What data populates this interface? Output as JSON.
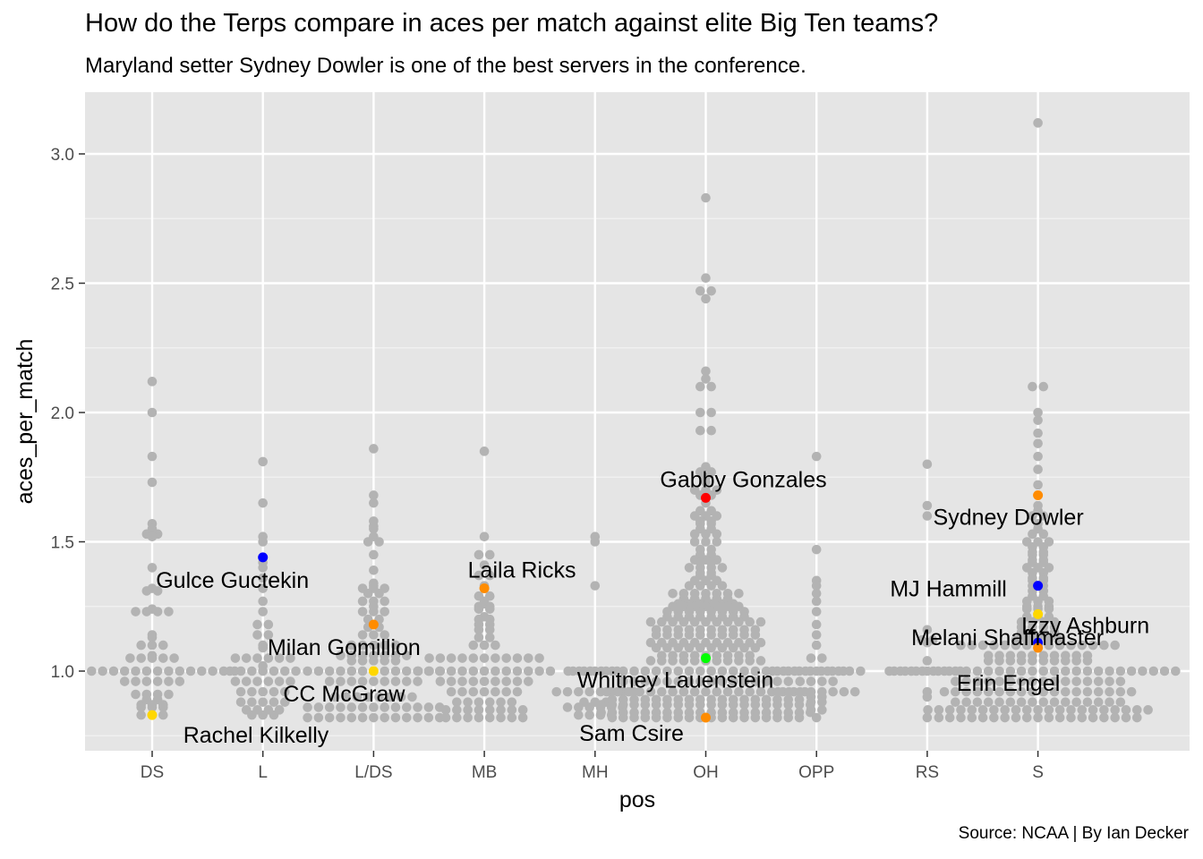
{
  "title": "How do the Terps compare in aces per match against elite Big Ten teams?",
  "subtitle": "Maryland setter Sydney Dowler is one of the best servers in the conference.",
  "caption": "Source: NCAA | By Ian Decker",
  "chart_data": {
    "type": "scatter",
    "xlabel": "pos",
    "ylabel": "aces_per_match",
    "categories": [
      "DS",
      "L",
      "L/DS",
      "MB",
      "MH",
      "OH",
      "OPP",
      "RS",
      "S"
    ],
    "ylim": [
      0.7,
      3.22
    ],
    "yticks": [
      1.0,
      1.5,
      2.0,
      2.5,
      3.0
    ],
    "ytick_labels": [
      "1.0",
      "1.5",
      "2.0",
      "2.5",
      "3.0"
    ],
    "grid": true,
    "background_color": "#e5e5e5",
    "point_color": "#b3b3b3",
    "highlighted": [
      {
        "label": "Gulce Guctekin",
        "pos": "L",
        "aces_per_match": 1.44,
        "color": "#0000ff"
      },
      {
        "label": "Rachel Kilkelly",
        "pos": "DS",
        "aces_per_match": 0.83,
        "color": "#ffd700"
      },
      {
        "label": "Milan Gomillion",
        "pos": "L/DS",
        "aces_per_match": 1.18,
        "color": "#ff8c00"
      },
      {
        "label": "CC McGraw",
        "pos": "L/DS",
        "aces_per_match": 1.0,
        "color": "#ffd700"
      },
      {
        "label": "Laila Ricks",
        "pos": "MB",
        "aces_per_match": 1.32,
        "color": "#ff8c00"
      },
      {
        "label": "Gabby Gonzales",
        "pos": "OH",
        "aces_per_match": 1.67,
        "color": "#ff0000"
      },
      {
        "label": "Whitney Lauenstein",
        "pos": "OH",
        "aces_per_match": 1.05,
        "color": "#00ff00"
      },
      {
        "label": "Sam Csire",
        "pos": "OH",
        "aces_per_match": 0.82,
        "color": "#ff8c00"
      },
      {
        "label": "Sydney Dowler",
        "pos": "S",
        "aces_per_match": 1.68,
        "color": "#ff8c00"
      },
      {
        "label": "MJ Hammill",
        "pos": "S",
        "aces_per_match": 1.33,
        "color": "#0000ff"
      },
      {
        "label": "Izzy Ashburn",
        "pos": "S",
        "aces_per_match": 1.22,
        "color": "#ffd700"
      },
      {
        "label": "Melani Shaffmaster",
        "pos": "S",
        "aces_per_match": 1.11,
        "color": "#0000ff"
      },
      {
        "label": "Erin Engel",
        "pos": "S",
        "aces_per_match": 1.09,
        "color": "#ff8c00"
      }
    ],
    "series": [
      {
        "pos": "DS",
        "values": [
          2.12,
          2.0,
          1.83,
          1.73,
          1.57,
          1.55,
          1.53,
          1.52,
          1.53,
          1.4,
          1.31,
          1.32,
          1.31,
          1.24,
          1.23,
          1.23,
          1.23,
          1.23,
          1.14,
          1.13,
          1.1,
          1.1,
          1.1,
          1.06,
          1.05,
          1.05,
          1.05,
          1.05,
          1.05,
          1.0,
          1.0,
          1.0,
          1.0,
          1.0,
          1.0,
          1.0,
          1.0,
          1.0,
          1.0,
          1.0,
          1.0,
          1.0,
          1.0,
          1.0,
          1.0,
          0.96,
          0.96,
          0.96,
          0.96,
          0.96,
          0.96,
          0.91,
          0.91,
          0.91,
          0.91,
          0.89,
          0.89,
          0.87,
          0.87,
          0.87,
          0.86,
          0.86,
          0.86,
          0.83,
          0.83,
          0.83
        ]
      },
      {
        "pos": "L",
        "values": [
          1.81,
          1.65,
          1.52,
          1.5,
          1.42,
          1.4,
          1.36,
          1.32,
          1.27,
          1.23,
          1.18,
          1.18,
          1.14,
          1.14,
          1.1,
          1.09,
          1.05,
          1.05,
          1.05,
          1.05,
          1.05,
          1.05,
          1.02,
          1.0,
          1.0,
          1.0,
          1.0,
          1.0,
          1.0,
          1.0,
          0.96,
          0.96,
          0.96,
          0.96,
          0.96,
          0.96,
          0.92,
          0.92,
          0.92,
          0.92,
          0.92,
          0.88,
          0.88,
          0.88,
          0.88,
          0.88,
          0.85,
          0.85,
          0.85,
          0.85,
          0.83,
          0.83,
          0.83
        ]
      },
      {
        "pos": "L/DS",
        "values": [
          1.86,
          1.68,
          1.65,
          1.58,
          1.56,
          1.55,
          1.52,
          1.5,
          1.5,
          1.45,
          1.39,
          1.34,
          1.33,
          1.32,
          1.32,
          1.32,
          1.3,
          1.3,
          1.27,
          1.27,
          1.27,
          1.25,
          1.23,
          1.23,
          1.23,
          1.2,
          1.2,
          1.17,
          1.17,
          1.14,
          1.14,
          1.14,
          1.1,
          1.1,
          1.1,
          1.1,
          1.1,
          1.06,
          1.06,
          1.06,
          1.06,
          1.06,
          1.06,
          1.06,
          1.04,
          1.04,
          1.04,
          1.04,
          1.04,
          1.0,
          1.0,
          1.0,
          1.0,
          1.0,
          1.0,
          1.0,
          1.0,
          1.0,
          1.0,
          1.0,
          1.0,
          1.0,
          0.96,
          0.96,
          0.96,
          0.96,
          0.96,
          0.96,
          0.96,
          0.96,
          0.96,
          0.9,
          0.9,
          0.9,
          0.9,
          0.9,
          0.9,
          0.9,
          0.9,
          0.86,
          0.86,
          0.86,
          0.86,
          0.86,
          0.86,
          0.86,
          0.86,
          0.86,
          0.86,
          0.86,
          0.86,
          0.86,
          0.82,
          0.82,
          0.82,
          0.82,
          0.82,
          0.82,
          0.82,
          0.82,
          0.82,
          0.82,
          0.82,
          0.82,
          0.82
        ]
      },
      {
        "pos": "MB",
        "values": [
          1.85,
          1.52,
          1.45,
          1.45,
          1.41,
          1.37,
          1.37,
          1.33,
          1.32,
          1.29,
          1.29,
          1.27,
          1.26,
          1.25,
          1.25,
          1.24,
          1.24,
          1.21,
          1.2,
          1.2,
          1.18,
          1.18,
          1.16,
          1.16,
          1.13,
          1.13,
          1.1,
          1.1,
          1.1,
          1.05,
          1.05,
          1.05,
          1.05,
          1.05,
          1.05,
          1.05,
          1.05,
          1.05,
          1.05,
          1.05,
          1.0,
          1.0,
          1.0,
          1.0,
          1.0,
          1.0,
          1.0,
          1.0,
          1.0,
          1.0,
          1.0,
          1.0,
          1.0,
          0.96,
          0.96,
          0.96,
          0.96,
          0.96,
          0.96,
          0.96,
          0.96,
          0.96,
          0.92,
          0.92,
          0.92,
          0.92,
          0.92,
          0.92,
          0.92,
          0.88,
          0.88,
          0.88,
          0.88,
          0.88,
          0.88,
          0.85,
          0.85,
          0.85,
          0.85,
          0.85,
          0.85,
          0.85,
          0.85,
          0.82,
          0.82,
          0.82,
          0.82,
          0.82,
          0.82,
          0.82,
          0.82
        ]
      },
      {
        "pos": "MH",
        "values": [
          1.52,
          1.5,
          1.33,
          1.0,
          1.0,
          1.0,
          1.0,
          1.0,
          0.92,
          0.92,
          0.92,
          0.92,
          0.92,
          0.92,
          0.92,
          0.92,
          0.88,
          0.88,
          0.88,
          0.86,
          0.86,
          0.86,
          0.86,
          0.86,
          0.86,
          0.83,
          0.83,
          0.83,
          0.83
        ]
      },
      {
        "pos": "OH",
        "values": [
          2.83,
          2.52,
          2.47,
          2.47,
          2.44,
          2.16,
          2.13,
          2.1,
          2.1,
          2.0,
          2.0,
          1.93,
          1.93,
          1.79,
          1.77,
          1.77,
          1.75,
          1.73,
          1.7,
          1.7,
          1.7,
          1.68,
          1.68,
          1.65,
          1.62,
          1.62,
          1.6,
          1.6,
          1.6,
          1.58,
          1.58,
          1.57,
          1.57,
          1.55,
          1.55,
          1.53,
          1.53,
          1.53,
          1.5,
          1.5,
          1.5,
          1.47,
          1.47,
          1.45,
          1.45,
          1.43,
          1.43,
          1.43,
          1.42,
          1.42,
          1.4,
          1.4,
          1.4,
          1.4,
          1.38,
          1.38,
          1.37,
          1.37,
          1.35,
          1.35,
          1.35,
          1.33,
          1.33,
          1.33,
          1.33,
          1.3,
          1.3,
          1.3,
          1.3,
          1.3,
          1.3,
          1.3,
          1.28,
          1.28,
          1.28,
          1.28,
          1.28,
          1.26,
          1.26,
          1.26,
          1.26,
          1.26,
          1.26,
          1.25,
          1.25,
          1.25,
          1.25,
          1.25,
          1.25,
          1.25,
          1.23,
          1.23,
          1.23,
          1.23,
          1.23,
          1.23,
          1.23,
          1.23,
          1.21,
          1.21,
          1.21,
          1.21,
          1.21,
          1.21,
          1.21,
          1.21,
          1.19,
          1.19,
          1.19,
          1.19,
          1.19,
          1.19,
          1.19,
          1.19,
          1.19,
          1.19,
          1.19,
          1.16,
          1.16,
          1.16,
          1.16,
          1.16,
          1.16,
          1.16,
          1.16,
          1.16,
          1.16,
          1.14,
          1.14,
          1.14,
          1.14,
          1.14,
          1.14,
          1.14,
          1.14,
          1.14,
          1.14,
          1.11,
          1.11,
          1.11,
          1.11,
          1.11,
          1.11,
          1.11,
          1.11,
          1.11,
          1.11,
          1.11,
          1.09,
          1.09,
          1.09,
          1.09,
          1.09,
          1.09,
          1.09,
          1.09,
          1.09,
          1.09,
          1.06,
          1.06,
          1.06,
          1.06,
          1.06,
          1.06,
          1.06,
          1.06,
          1.06,
          1.04,
          1.04,
          1.04,
          1.04,
          1.04,
          1.04,
          1.04,
          1.04,
          1.04,
          1.04,
          1.04,
          1.0,
          1.0,
          1.0,
          1.0,
          1.0,
          1.0,
          1.0,
          1.0,
          1.0,
          1.0,
          1.0,
          1.0,
          1.0,
          1.0,
          1.0,
          1.0,
          1.0,
          1.0,
          1.0,
          1.0,
          1.0,
          1.0,
          1.0,
          1.0,
          1.0,
          1.0,
          0.96,
          0.96,
          0.96,
          0.96,
          0.96,
          0.96,
          0.96,
          0.96,
          0.96,
          0.96,
          0.96,
          0.96,
          0.96,
          0.96,
          0.96,
          0.96,
          0.92,
          0.92,
          0.92,
          0.92,
          0.92,
          0.92,
          0.92,
          0.92,
          0.92,
          0.92,
          0.92,
          0.92,
          0.92,
          0.92,
          0.92,
          0.92,
          0.92,
          0.92,
          0.92,
          0.89,
          0.89,
          0.89,
          0.89,
          0.89,
          0.89,
          0.89,
          0.89,
          0.89,
          0.89,
          0.89,
          0.89,
          0.89,
          0.89,
          0.89,
          0.89,
          0.89,
          0.89,
          0.87,
          0.87,
          0.87,
          0.87,
          0.87,
          0.87,
          0.87,
          0.87,
          0.87,
          0.87,
          0.87,
          0.87,
          0.87,
          0.87,
          0.87,
          0.87,
          0.87,
          0.87,
          0.87,
          0.87,
          0.84,
          0.84,
          0.84,
          0.84,
          0.84,
          0.84,
          0.84,
          0.84,
          0.84,
          0.84,
          0.84,
          0.84,
          0.84,
          0.84,
          0.84,
          0.84,
          0.84,
          0.84,
          0.84,
          0.84,
          0.82,
          0.82,
          0.82,
          0.82,
          0.82,
          0.82,
          0.82,
          0.82,
          0.82,
          0.82,
          0.82,
          0.82,
          0.82,
          0.82,
          0.82,
          0.82,
          0.82,
          0.82
        ]
      },
      {
        "pos": "OPP",
        "values": [
          1.83,
          1.47,
          1.35,
          1.33,
          1.3,
          1.27,
          1.23,
          1.18,
          1.14,
          1.1,
          1.05,
          1.05,
          1.0,
          1.0,
          1.0,
          1.0,
          1.0,
          1.0,
          1.0,
          1.0,
          1.0,
          0.96,
          0.96,
          0.96,
          0.96,
          0.92,
          0.92,
          0.92,
          0.92,
          0.92,
          0.92,
          0.92,
          0.92,
          0.9,
          0.9,
          0.88,
          0.88,
          0.85,
          0.85,
          0.82
        ]
      },
      {
        "pos": "RS",
        "values": [
          1.8,
          1.64,
          1.6,
          1.16,
          1.12,
          1.12,
          1.11,
          1.04,
          1.0,
          1.0,
          1.0,
          1.0,
          1.0,
          1.0,
          1.0,
          0.92,
          0.9,
          0.82
        ]
      },
      {
        "pos": "S",
        "values": [
          3.12,
          2.1,
          2.1,
          2.0,
          1.97,
          1.92,
          1.88,
          1.83,
          1.78,
          1.72,
          1.64,
          1.62,
          1.6,
          1.6,
          1.57,
          1.55,
          1.53,
          1.53,
          1.5,
          1.5,
          1.5,
          1.48,
          1.48,
          1.46,
          1.46,
          1.45,
          1.45,
          1.43,
          1.43,
          1.42,
          1.42,
          1.4,
          1.4,
          1.4,
          1.38,
          1.38,
          1.36,
          1.36,
          1.35,
          1.35,
          1.33,
          1.33,
          1.31,
          1.31,
          1.29,
          1.29,
          1.27,
          1.27,
          1.27,
          1.25,
          1.25,
          1.25,
          1.24,
          1.24,
          1.24,
          1.21,
          1.21,
          1.21,
          1.19,
          1.19,
          1.19,
          1.19,
          1.17,
          1.17,
          1.17,
          1.17,
          1.15,
          1.15,
          1.15,
          1.15,
          1.14,
          1.14,
          1.14,
          1.14,
          1.12,
          1.12,
          1.12,
          1.12,
          1.12,
          1.1,
          1.1,
          1.1,
          1.1,
          1.1,
          1.1,
          1.1,
          1.1,
          1.1,
          1.1,
          1.1,
          1.1,
          1.1,
          1.1,
          1.1,
          1.06,
          1.06,
          1.06,
          1.06,
          1.06,
          1.06,
          1.06,
          1.06,
          1.06,
          1.06,
          1.04,
          1.04,
          1.04,
          1.04,
          1.04,
          1.04,
          1.04,
          1.04,
          1.04,
          1.04,
          1.0,
          1.0,
          1.0,
          1.0,
          1.0,
          1.0,
          1.0,
          1.0,
          1.0,
          1.0,
          1.0,
          1.0,
          1.0,
          1.0,
          1.0,
          1.0,
          1.0,
          1.0,
          1.0,
          1.0,
          1.0,
          1.0,
          1.0,
          1.0,
          1.0,
          1.0,
          1.0,
          1.0,
          0.96,
          0.96,
          0.96,
          0.96,
          0.96,
          0.96,
          0.96,
          0.96,
          0.96,
          0.96,
          0.96,
          0.96,
          0.96,
          0.96,
          0.96,
          0.96,
          0.92,
          0.92,
          0.92,
          0.92,
          0.92,
          0.92,
          0.92,
          0.92,
          0.92,
          0.92,
          0.92,
          0.92,
          0.92,
          0.92,
          0.92,
          0.92,
          0.92,
          0.92,
          0.88,
          0.88,
          0.88,
          0.88,
          0.88,
          0.88,
          0.88,
          0.88,
          0.88,
          0.88,
          0.88,
          0.88,
          0.88,
          0.88,
          0.88,
          0.88,
          0.85,
          0.85,
          0.85,
          0.85,
          0.85,
          0.85,
          0.85,
          0.85,
          0.85,
          0.85,
          0.85,
          0.85,
          0.85,
          0.85,
          0.85,
          0.85,
          0.85,
          0.85,
          0.85,
          0.85,
          0.85,
          0.82,
          0.82,
          0.82,
          0.82,
          0.82,
          0.82,
          0.82,
          0.82,
          0.82,
          0.82,
          0.82,
          0.82,
          0.82,
          0.82,
          0.82,
          0.82,
          0.82,
          0.82,
          0.82
        ]
      }
    ]
  }
}
